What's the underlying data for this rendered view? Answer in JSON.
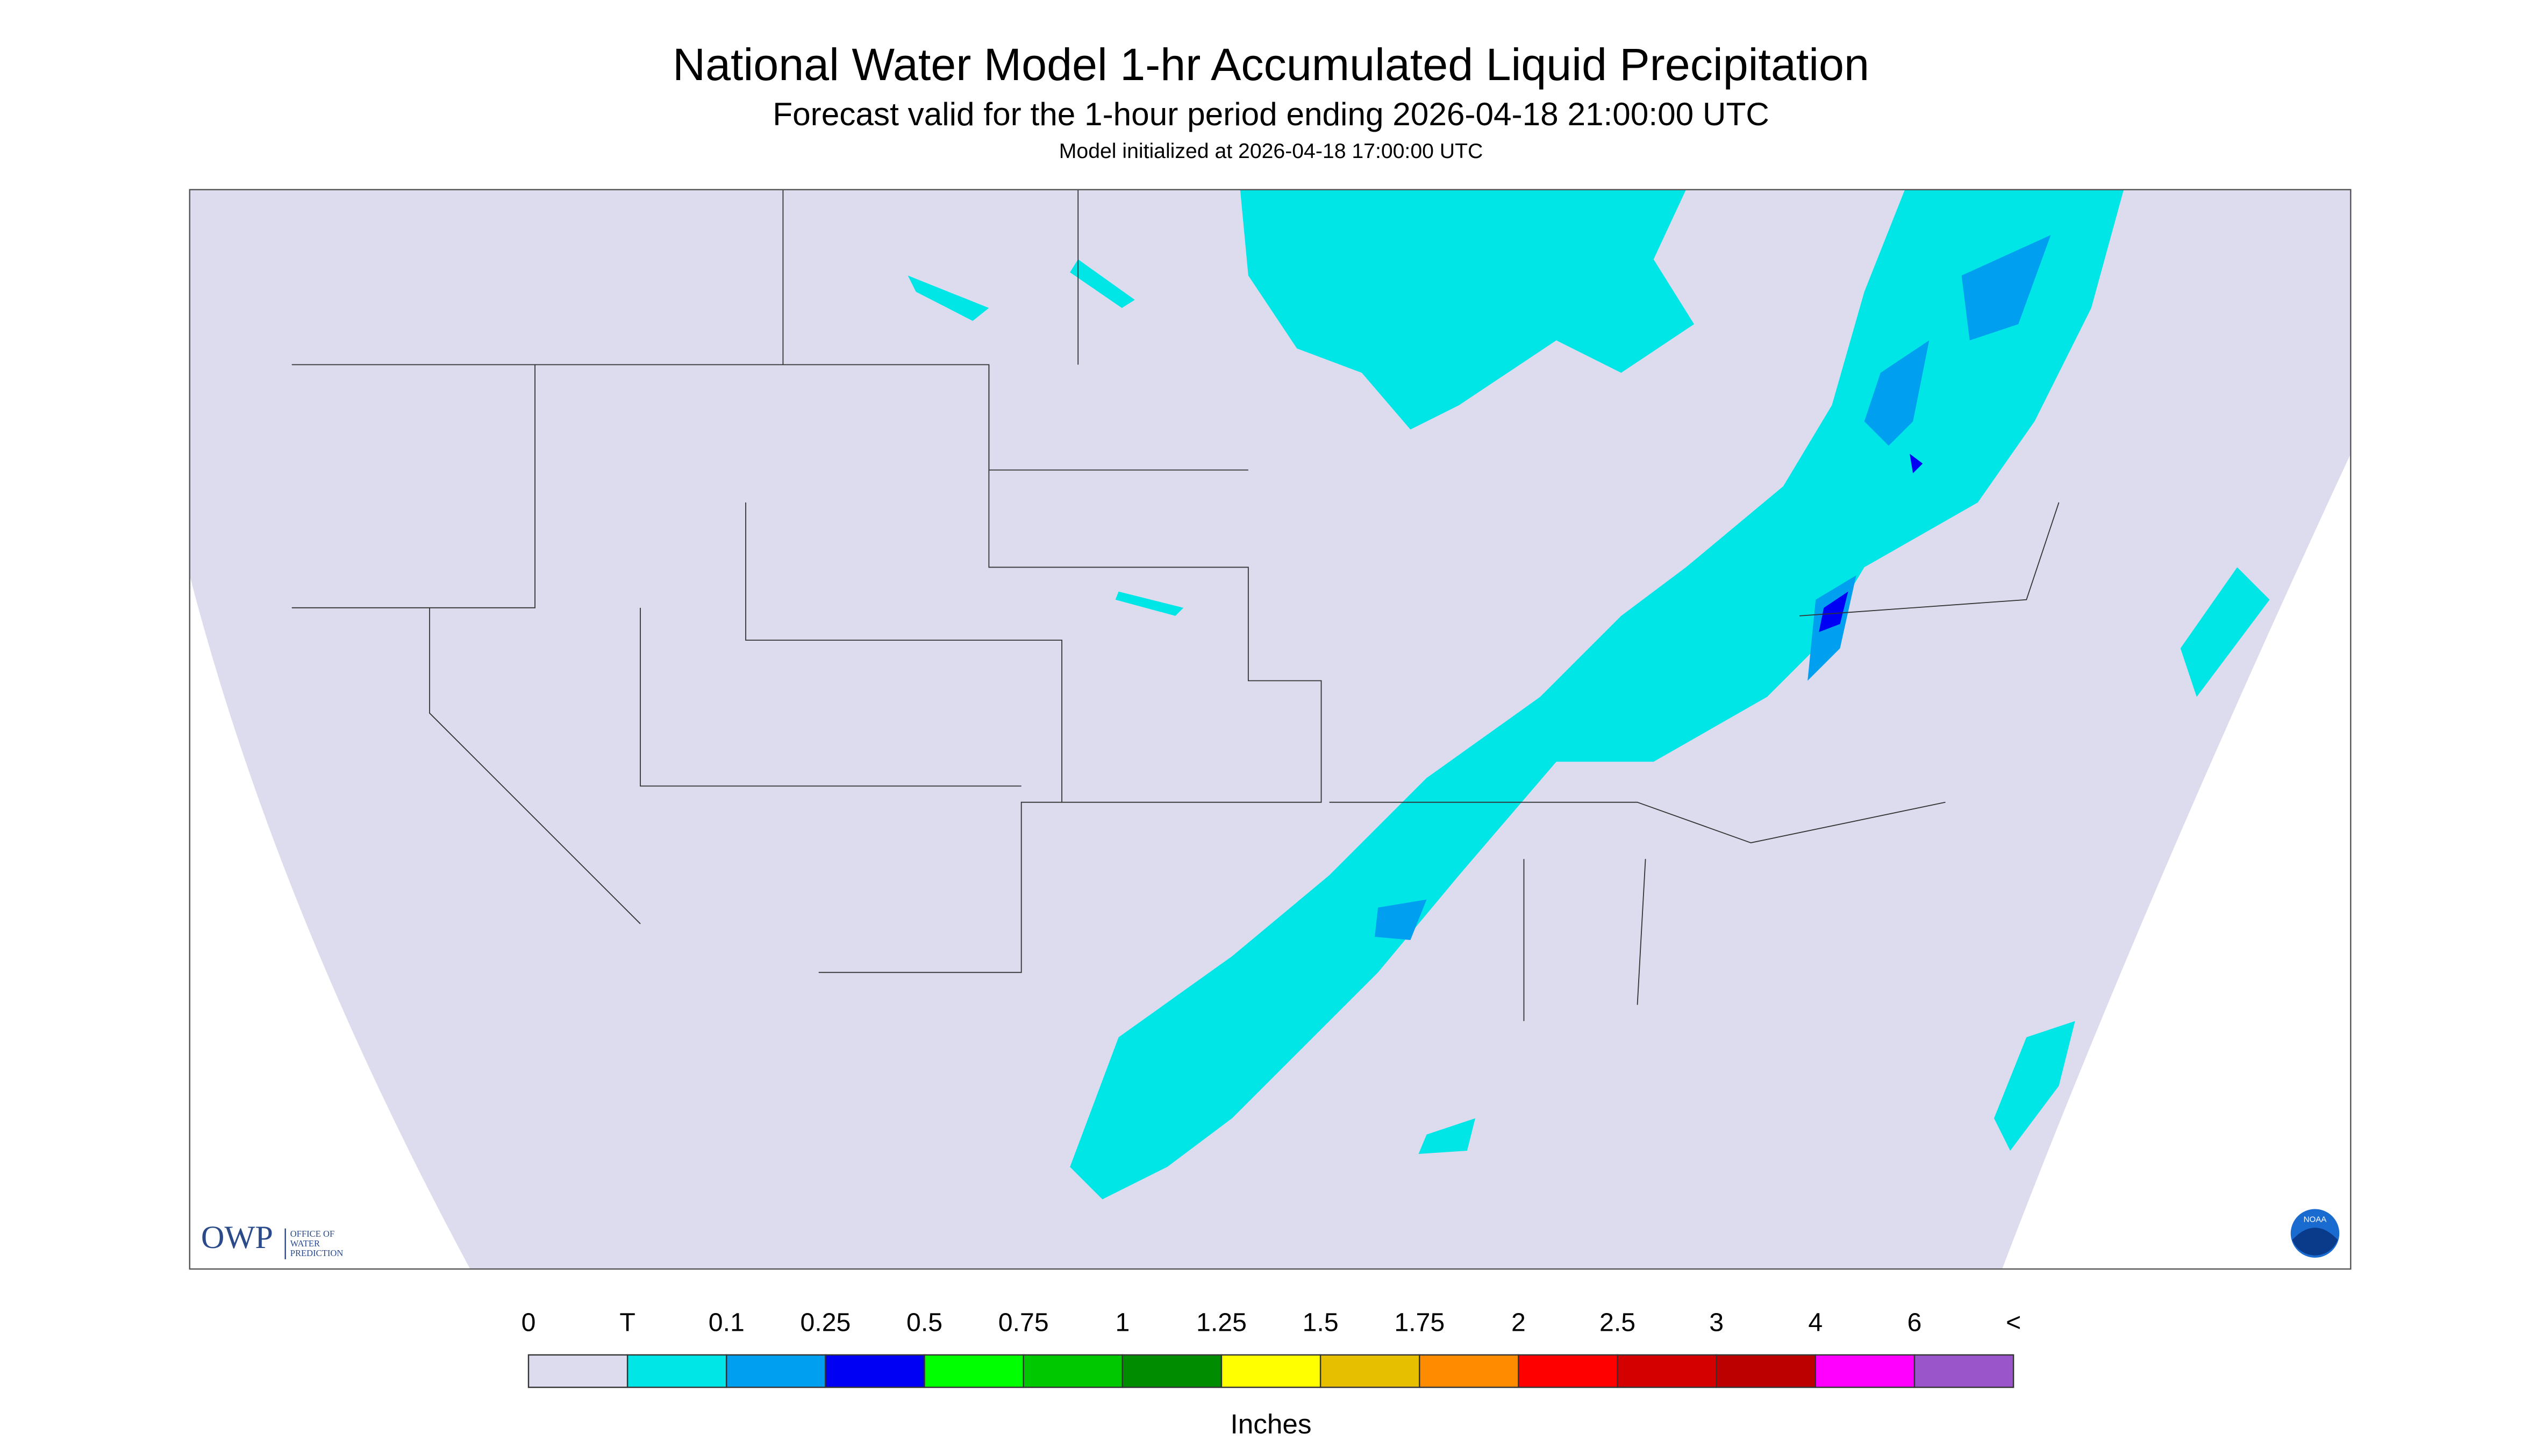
{
  "header": {
    "title": "National Water Model 1-hr Accumulated Liquid Precipitation",
    "subtitle": "Forecast valid for the 1-hour period ending 2026-04-18 21:00:00 UTC",
    "init": "Model initialized at 2026-04-18 17:00:00 UTC"
  },
  "logo": {
    "short": "OWP",
    "long": [
      "OFFICE OF",
      "WATER",
      "PREDICTION"
    ],
    "noaa": "NOAA"
  },
  "legend": {
    "labels": [
      "0",
      "T",
      "0.1",
      "0.25",
      "0.5",
      "0.75",
      "1",
      "1.25",
      "1.5",
      "1.75",
      "2",
      "2.5",
      "3",
      "4",
      "6",
      "<"
    ],
    "colors": [
      "#dcdcee",
      "#00e6e6",
      "#009ff0",
      "#0000f5",
      "#00ff00",
      "#00c800",
      "#008c00",
      "#ffff00",
      "#e5bf00",
      "#ff8c00",
      "#ff0000",
      "#d40000",
      "#bc0000",
      "#ff00ff",
      "#9955c9"
    ],
    "unit": "Inches"
  }
}
